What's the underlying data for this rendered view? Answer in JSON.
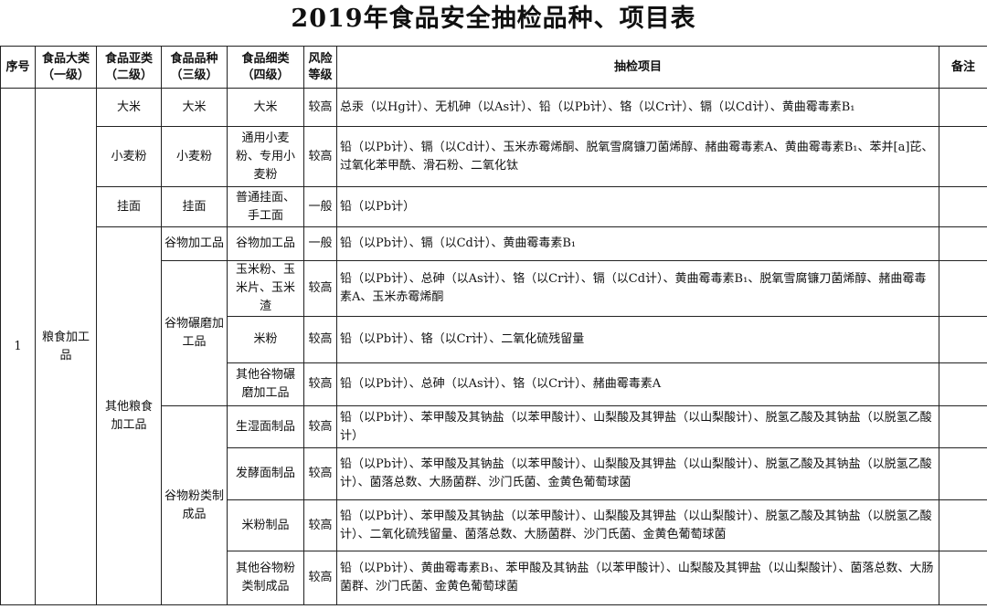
{
  "title": "2019年食品安全抽检品种、项目表",
  "headers": {
    "seq": "序号",
    "cat1": "食品大类（一级）",
    "cat2": "食品亚类（二级）",
    "cat3": "食品品种（三级）",
    "cat4": "食品细类（四级）",
    "risk": "风险等级",
    "items": "抽检项目",
    "note": "备注"
  },
  "group": {
    "seq": "1",
    "cat1": "粮食加工品"
  },
  "cat2": [
    "大米",
    "小麦粉",
    "挂面",
    "其他粮食加工品"
  ],
  "cat3": [
    "大米",
    "小麦粉",
    "挂面",
    "谷物加工品",
    "谷物碾磨加工品",
    "谷物粉类制成品"
  ],
  "rows": [
    {
      "cat4": "大米",
      "risk": "较高",
      "items": "总汞（以Hg计）、无机砷（以As计）、铅（以Pb计）、铬（以Cr计）、镉（以Cd计）、黄曲霉毒素B₁",
      "note": ""
    },
    {
      "cat4": "通用小麦粉、专用小麦粉",
      "risk": "较高",
      "items": "铅（以Pb计）、镉（以Cd计）、玉米赤霉烯酮、脱氧雪腐镰刀菌烯醇、赭曲霉毒素A、黄曲霉毒素B₁、苯并[a]芘、过氧化苯甲酰、滑石粉、二氧化钛",
      "note": ""
    },
    {
      "cat4": "普通挂面、手工面",
      "risk": "一般",
      "items": "铅（以Pb计）",
      "note": ""
    },
    {
      "cat4": "谷物加工品",
      "risk": "一般",
      "items": "铅（以Pb计）、镉（以Cd计）、黄曲霉毒素B₁",
      "note": ""
    },
    {
      "cat4": "玉米粉、玉米片、玉米渣",
      "risk": "较高",
      "items": "铅（以Pb计）、总砷（以As计）、铬（以Cr计）、镉（以Cd计）、黄曲霉毒素B₁、脱氧雪腐镰刀菌烯醇、赭曲霉毒素A、玉米赤霉烯酮",
      "note": ""
    },
    {
      "cat4": "米粉",
      "risk": "较高",
      "items": "铅（以Pb计）、铬（以Cr计）、二氧化硫残留量",
      "note": ""
    },
    {
      "cat4": "其他谷物碾磨加工品",
      "risk": "较高",
      "items": "铅（以Pb计）、总砷（以As计）、铬（以Cr计）、赭曲霉毒素A",
      "note": ""
    },
    {
      "cat4": "生湿面制品",
      "risk": "较高",
      "items": "铅（以Pb计）、苯甲酸及其钠盐（以苯甲酸计）、山梨酸及其钾盐（以山梨酸计）、脱氢乙酸及其钠盐（以脱氢乙酸计）",
      "note": ""
    },
    {
      "cat4": "发酵面制品",
      "risk": "较高",
      "items": "铅（以Pb计）、苯甲酸及其钠盐（以苯甲酸计）、山梨酸及其钾盐（以山梨酸计）、脱氢乙酸及其钠盐（以脱氢乙酸计）、菌落总数、大肠菌群、沙门氏菌、金黄色葡萄球菌",
      "note": ""
    },
    {
      "cat4": "米粉制品",
      "risk": "较高",
      "items": "铅（以Pb计）、苯甲酸及其钠盐（以苯甲酸计）、山梨酸及其钾盐（以山梨酸计）、脱氢乙酸及其钠盐（以脱氢乙酸计）、二氧化硫残留量、菌落总数、大肠菌群、沙门氏菌、金黄色葡萄球菌",
      "note": ""
    },
    {
      "cat4": "其他谷物粉类制成品",
      "risk": "较高",
      "items": "铅（以Pb计）、黄曲霉毒素B₁、苯甲酸及其钠盐（以苯甲酸计）、山梨酸及其钾盐（以山梨酸计）、菌落总数、大肠菌群、沙门氏菌、金黄色葡萄球菌",
      "note": ""
    }
  ]
}
